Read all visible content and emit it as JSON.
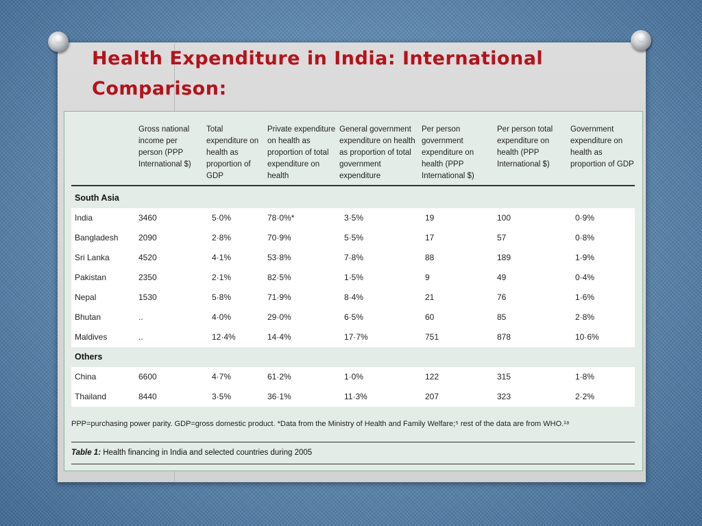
{
  "slide": {
    "title": "Health Expenditure in India: International Comparison:"
  },
  "table": {
    "headers": [
      "Gross national income per person (PPP International $)",
      "Total expenditure on health as proportion of GDP",
      "Private expenditure on health as proportion of total expenditure on health",
      "General government expenditure on health as proportion of total government expenditure",
      "Per person government expenditure on health (PPP International $)",
      "Per person total expenditure on health (PPP International $)",
      "Government expenditure on health as proportion of GDP"
    ],
    "sections": [
      {
        "name": "South Asia",
        "rows": [
          [
            "India",
            "3460",
            "5·0%",
            "78·0%*",
            "3·5%",
            "19",
            "100",
            "0·9%"
          ],
          [
            "Bangladesh",
            "2090",
            "2·8%",
            "70·9%",
            "5·5%",
            "17",
            "57",
            "0·8%"
          ],
          [
            "Sri Lanka",
            "4520",
            "4·1%",
            "53·8%",
            "7·8%",
            "88",
            "189",
            "1·9%"
          ],
          [
            "Pakistan",
            "2350",
            "2·1%",
            "82·5%",
            "1·5%",
            "9",
            "49",
            "0·4%"
          ],
          [
            "Nepal",
            "1530",
            "5·8%",
            "71·9%",
            "8·4%",
            "21",
            "76",
            "1·6%"
          ],
          [
            "Bhutan",
            "..",
            "4·0%",
            "29·0%",
            "6·5%",
            "60",
            "85",
            "2·8%"
          ],
          [
            "Maldives",
            "..",
            "12·4%",
            "14·4%",
            "17·7%",
            "751",
            "878",
            "10·6%"
          ]
        ]
      },
      {
        "name": "Others",
        "rows": [
          [
            "China",
            "6600",
            "4·7%",
            "61·2%",
            "1·0%",
            "122",
            "315",
            "1·8%"
          ],
          [
            "Thailand",
            "8440",
            "3·5%",
            "36·1%",
            "11·3%",
            "207",
            "323",
            "2·2%"
          ]
        ]
      }
    ],
    "footnote": "PPP=purchasing power parity. GDP=gross domestic product. *Data from the Ministry of Health and Family Welfare;⁵ rest of the data are from WHO.¹⁸",
    "caption_label": "Table 1:",
    "caption_text": " Health financing in India and selected countries during 2005"
  }
}
